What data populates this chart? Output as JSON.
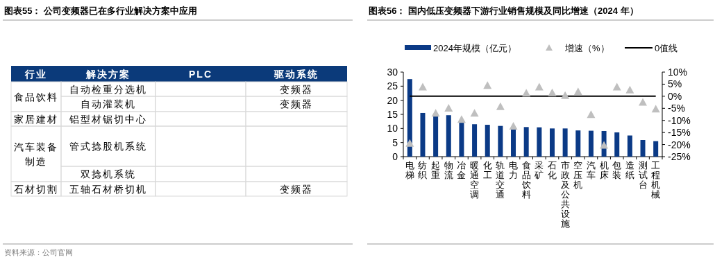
{
  "chart_data": [
    {
      "type": "other",
      "title": "图表55：  公司变频器已在多行业解决方案中应用",
      "annotations": [
        "行业",
        "解决方案",
        "PLC",
        "驱动系统",
        "食品饮料",
        "自动检重分选机",
        "变频器",
        "自动灌装机",
        "变频器",
        "家居建材",
        "铝型材锯切中心",
        "汽车装备制造",
        "管式捻股机系统",
        "双捻机系统",
        "石材切割",
        "五轴石材桥切机",
        "变频器",
        "资料来源：公司官网"
      ]
    },
    {
      "type": "bar",
      "title": "图表56：  国内低压变频器下游行业销售规模及同比增速（2024 年）",
      "categories": [
        "电梯",
        "纺织",
        "起重",
        "物流",
        "冶金",
        "暖通空调",
        "化工",
        "轨道交通",
        "电力",
        "食品饮料",
        "采矿",
        "石化",
        "市政及公共设施",
        "空压机",
        "汽车",
        "机床",
        "包装",
        "造纸",
        "测试台",
        "工程机械"
      ],
      "series": [
        {
          "name": "2024年规模（亿元）",
          "type": "bar",
          "color": "#0b3a86",
          "values": [
            27.5,
            15.5,
            14.3,
            14.7,
            12.1,
            11.5,
            11.3,
            10.9,
            9.8,
            10.5,
            10.4,
            10.0,
            10.0,
            9.3,
            9.2,
            9.1,
            8.6,
            7.5,
            5.9,
            5.5
          ]
        },
        {
          "name": "增速（%）",
          "type": "scatter",
          "axis": "y2",
          "marker": "triangle",
          "color": "#bfbfbf",
          "values": [
            -19.5,
            3.8,
            -7.0,
            -4.9,
            -9.6,
            -7.0,
            4.5,
            -4.3,
            -12.4,
            1.3,
            3.8,
            1.5,
            0.3,
            1.9,
            -7.6,
            -20.3,
            3.8,
            2.6,
            -2.5,
            -5.3
          ]
        }
      ],
      "ref_lines": [
        {
          "axis": "y2",
          "value": 0,
          "label": "0值线",
          "color": "#000000",
          "line_style": "solid"
        }
      ],
      "ylim": [
        0,
        30
      ],
      "yticks": [
        0,
        5,
        10,
        15,
        20,
        25,
        30
      ],
      "y2lim": [
        -25,
        10
      ],
      "y2ticks": [
        {
          "value": -25,
          "label": "-25%"
        },
        {
          "value": -20,
          "label": "-20%"
        },
        {
          "value": -15,
          "label": "-15%"
        },
        {
          "value": -10,
          "label": "-10%"
        },
        {
          "value": -5,
          "label": "-5%"
        },
        {
          "value": 0,
          "label": "0%"
        },
        {
          "value": 5,
          "label": "5%"
        },
        {
          "value": 10,
          "label": "10%"
        }
      ],
      "legend": "top",
      "grid": false
    }
  ]
}
